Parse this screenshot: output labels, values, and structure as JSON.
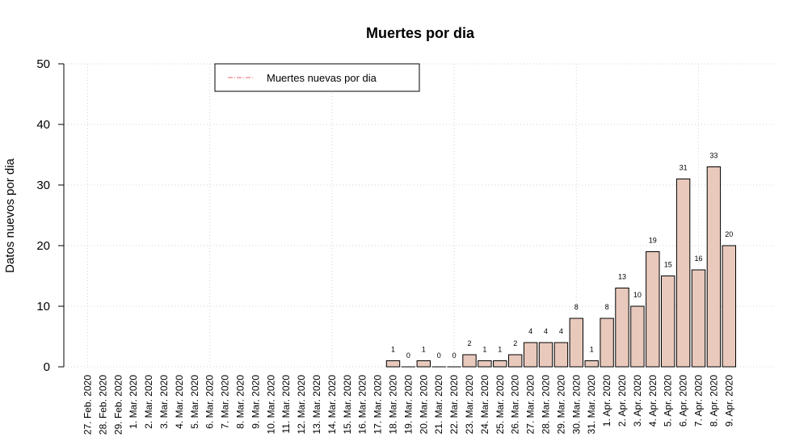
{
  "chart_data": {
    "type": "bar",
    "title": "Muertes por dia",
    "xlabel": "",
    "ylabel": "Datos nuevos por dia",
    "ylim": [
      0,
      50
    ],
    "yticks": [
      0,
      10,
      20,
      30,
      40,
      50
    ],
    "ytick_labels": [
      "0",
      "10",
      "20",
      "30",
      "40",
      "50"
    ],
    "grid": true,
    "legend_position": "top-left",
    "categories": [
      "27. Feb. 2020",
      "28. Feb. 2020",
      "29. Feb. 2020",
      "1. Mar. 2020",
      "2. Mar. 2020",
      "3. Mar. 2020",
      "4. Mar. 2020",
      "5. Mar. 2020",
      "6. Mar. 2020",
      "7. Mar. 2020",
      "8. Mar. 2020",
      "9. Mar. 2020",
      "10. Mar. 2020",
      "11. Mar. 2020",
      "12. Mar. 2020",
      "13. Mar. 2020",
      "14. Mar. 2020",
      "15. Mar. 2020",
      "16. Mar. 2020",
      "17. Mar. 2020",
      "18. Mar. 2020",
      "19. Mar. 2020",
      "20. Mar. 2020",
      "21. Mar. 2020",
      "22. Mar. 2020",
      "23. Mar. 2020",
      "24. Mar. 2020",
      "25. Mar. 2020",
      "26. Mar. 2020",
      "27. Mar. 2020",
      "28. Mar. 2020",
      "29. Mar. 2020",
      "30. Mar. 2020",
      "31. Mar. 2020",
      "1. Apr. 2020",
      "2. Apr. 2020",
      "3. Apr. 2020",
      "4. Apr. 2020",
      "5. Apr. 2020",
      "6. Apr. 2020",
      "7. Apr. 2020",
      "8. Apr. 2020",
      "9. Apr. 2020"
    ],
    "values": [
      null,
      null,
      null,
      null,
      null,
      null,
      null,
      null,
      null,
      null,
      null,
      null,
      null,
      null,
      null,
      null,
      null,
      null,
      null,
      null,
      1,
      0,
      1,
      0,
      0,
      2,
      1,
      1,
      2,
      4,
      4,
      4,
      8,
      1,
      8,
      13,
      10,
      19,
      15,
      31,
      16,
      33,
      20
    ],
    "series": [
      {
        "name": "Muertes nuevas por dia",
        "values": [
          null,
          null,
          null,
          null,
          null,
          null,
          null,
          null,
          null,
          null,
          null,
          null,
          null,
          null,
          null,
          null,
          null,
          null,
          null,
          null,
          1,
          0,
          1,
          0,
          0,
          2,
          1,
          1,
          2,
          4,
          4,
          4,
          8,
          1,
          8,
          13,
          10,
          19,
          15,
          31,
          16,
          33,
          20
        ]
      }
    ],
    "colors": {
      "bar_fill": "#e8c9bc",
      "bar_stroke": "#000000",
      "grid": "#d3d3d3",
      "legend_line": "#e8636b"
    }
  }
}
